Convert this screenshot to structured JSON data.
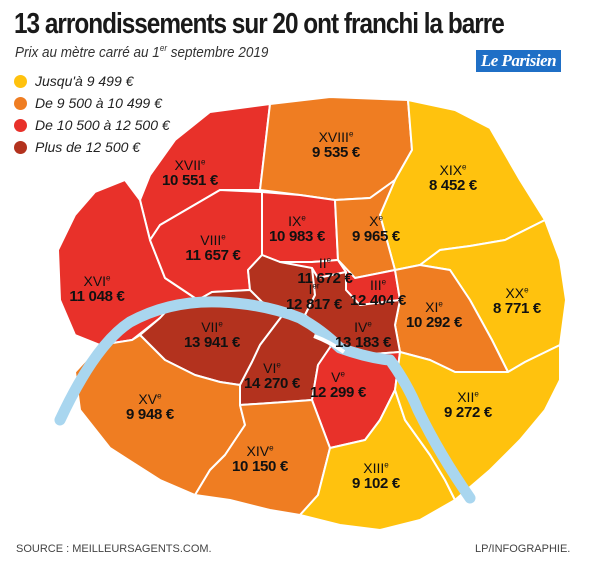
{
  "title": "13 arrondissements sur 20 ont franchi la barre",
  "subtitle": "Prix au mètre carré au 1",
  "subtitle_sup": "er",
  "subtitle_end": " septembre 2019",
  "brand": "Le Parisien",
  "colors": {
    "yellow": "#ffc20e",
    "orange": "#ef7d22",
    "red": "#e8312a",
    "darkred": "#b3321e",
    "river": "#a9d6ef",
    "border": "#ffffff"
  },
  "legend": [
    {
      "label": "Jusqu'à 9 499 €",
      "color": "#ffc20e"
    },
    {
      "label": "De 9 500 à 10 499 €",
      "color": "#ef7d22"
    },
    {
      "label": "De 10 500 à 12 500 €",
      "color": "#e8312a"
    },
    {
      "label": "Plus de 12 500 €",
      "color": "#b3321e"
    }
  ],
  "arrondissements": [
    {
      "num": "I",
      "suffix": "er",
      "price": "12 817 €"
    },
    {
      "num": "II",
      "suffix": "e",
      "price": "11 672 €"
    },
    {
      "num": "III",
      "suffix": "e",
      "price": "12 404 €"
    },
    {
      "num": "IV",
      "suffix": "e",
      "price": "13 183 €"
    },
    {
      "num": "V",
      "suffix": "e",
      "price": "12 299 €"
    },
    {
      "num": "VI",
      "suffix": "e",
      "price": "14 270 €"
    },
    {
      "num": "VII",
      "suffix": "e",
      "price": "13 941 €"
    },
    {
      "num": "VIII",
      "suffix": "e",
      "price": "11 657 €"
    },
    {
      "num": "IX",
      "suffix": "e",
      "price": "10 983 €"
    },
    {
      "num": "X",
      "suffix": "e",
      "price": "9 965 €"
    },
    {
      "num": "XI",
      "suffix": "e",
      "price": "10 292 €"
    },
    {
      "num": "XII",
      "suffix": "e",
      "price": "9 272 €"
    },
    {
      "num": "XIII",
      "suffix": "e",
      "price": "9 102 €"
    },
    {
      "num": "XIV",
      "suffix": "e",
      "price": "10 150 €"
    },
    {
      "num": "XV",
      "suffix": "e",
      "price": "9 948 €"
    },
    {
      "num": "XVI",
      "suffix": "e",
      "price": "11 048 €"
    },
    {
      "num": "XVII",
      "suffix": "e",
      "price": "10 551 €"
    },
    {
      "num": "XVIII",
      "suffix": "e",
      "price": "9 535 €"
    },
    {
      "num": "XIX",
      "suffix": "e",
      "price": "8 452 €"
    },
    {
      "num": "XX",
      "suffix": "e",
      "price": "8 771 €"
    }
  ],
  "source": "SOURCE : MEILLEURSAGENTS.COM.",
  "credit": "LP/INFOGRAPHIE."
}
